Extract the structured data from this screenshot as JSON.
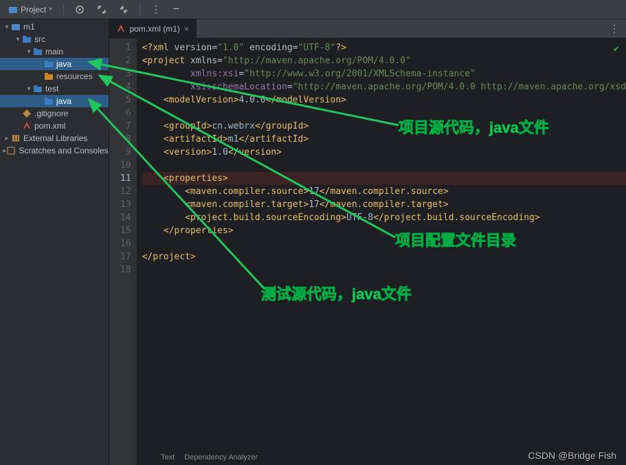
{
  "toolbar": {
    "project_label": "Project",
    "target_icon": "target",
    "expand_icon": "expand",
    "collapse_icon": "collapse",
    "more_icon": "more",
    "hide_icon": "hide"
  },
  "tree": {
    "items": [
      {
        "label": "m1",
        "depth": 0,
        "icon": "module",
        "chev": "down",
        "sel": false
      },
      {
        "label": "src",
        "depth": 1,
        "icon": "folder-blue",
        "chev": "down",
        "sel": false
      },
      {
        "label": "main",
        "depth": 2,
        "icon": "folder-blue",
        "chev": "down",
        "sel": false
      },
      {
        "label": "java",
        "depth": 3,
        "icon": "folder-blue",
        "chev": "",
        "sel": true
      },
      {
        "label": "resources",
        "depth": 3,
        "icon": "folder-orange",
        "chev": "",
        "sel": false
      },
      {
        "label": "test",
        "depth": 2,
        "icon": "folder-blue",
        "chev": "down",
        "sel": false
      },
      {
        "label": "java",
        "depth": 3,
        "icon": "folder-blue",
        "chev": "",
        "sel": true
      },
      {
        "label": ".gitignore",
        "depth": 1,
        "icon": "git",
        "chev": "",
        "sel": false
      },
      {
        "label": "pom.xml",
        "depth": 1,
        "icon": "maven",
        "chev": "",
        "sel": false
      },
      {
        "label": "External Libraries",
        "depth": 0,
        "icon": "lib",
        "chev": "right",
        "sel": false
      },
      {
        "label": "Scratches and Consoles",
        "depth": 0,
        "icon": "scratch",
        "chev": "right",
        "sel": false
      }
    ]
  },
  "tab": {
    "title": "pom.xml (m1)",
    "icon": "maven"
  },
  "annotations": {
    "a1": "项目源代码，java文件",
    "a2": "项目配置文件目录",
    "a3": "测试源代码，java文件"
  },
  "code": {
    "lines": [
      {
        "n": 1,
        "html": "<span class='c-proc'>&lt;?xml</span> <span class='c-attr'>version</span>=<span class='c-str'>\"1.0\"</span> <span class='c-attr'>encoding</span>=<span class='c-str'>\"UTF-8\"</span><span class='c-proc'>?&gt;</span>"
      },
      {
        "n": 2,
        "html": "<span class='c-tag'>&lt;project</span> <span class='c-attr'>xmlns</span>=<span class='c-str'>\"http://maven.apache.org/POM/4.0.0\"</span>"
      },
      {
        "n": 3,
        "html": "         <span class='c-attrk'>xmlns:xsi</span>=<span class='c-str'>\"http://www.w3.org/2001/XMLSchema-instance\"</span>"
      },
      {
        "n": 4,
        "html": "         <span class='c-attrk'>xsi:schemaLocation</span>=<span class='c-str'>\"http://maven.apache.org/POM/4.0.0 http://maven.apache.org/xsd</span>"
      },
      {
        "n": 5,
        "html": "    <span class='c-tag'>&lt;modelVersion&gt;</span><span class='c-text'>4.0.0</span><span class='c-tag'>&lt;/modelVersion&gt;</span>"
      },
      {
        "n": 6,
        "html": ""
      },
      {
        "n": 7,
        "html": "    <span class='c-tag'>&lt;groupId&gt;</span><span class='c-text'>cn.webrx</span><span class='c-tag'>&lt;/groupId&gt;</span>"
      },
      {
        "n": 8,
        "html": "    <span class='c-tag'>&lt;artifactId&gt;</span><span class='c-text'>m1</span><span class='c-tag'>&lt;/artifactId&gt;</span>"
      },
      {
        "n": 9,
        "html": "    <span class='c-tag'>&lt;version&gt;</span><span class='c-text'>1.0</span><span class='c-tag'>&lt;/version&gt;</span>"
      },
      {
        "n": 10,
        "html": ""
      },
      {
        "n": 11,
        "html": "    <span class='c-tag'>&lt;properties&gt;</span>",
        "hl": true
      },
      {
        "n": 12,
        "html": "        <span class='c-tag'>&lt;maven.compiler.source&gt;</span><span class='c-text'>17</span><span class='c-tag'>&lt;/maven.compiler.source&gt;</span>"
      },
      {
        "n": 13,
        "html": "        <span class='c-tag'>&lt;maven.compiler.target&gt;</span><span class='c-text'>17</span><span class='c-tag'>&lt;/maven.compiler.target&gt;</span>"
      },
      {
        "n": 14,
        "html": "        <span class='c-tag'>&lt;project.build.sourceEncoding&gt;</span><span class='c-text'>UTF-8</span><span class='c-tag'>&lt;/project.build.sourceEncoding&gt;</span>"
      },
      {
        "n": 15,
        "html": "    <span class='c-tag'>&lt;/properties&gt;</span>"
      },
      {
        "n": 16,
        "html": ""
      },
      {
        "n": 17,
        "html": "<span class='c-tag'>&lt;/project&gt;</span>"
      },
      {
        "n": 18,
        "html": ""
      }
    ]
  },
  "footer": {
    "tab1": "Text",
    "tab2": "Dependency Analyzer"
  },
  "watermark": "CSDN @Bridge Fish",
  "arrows": {
    "stroke": "#22c55e",
    "stroke_width": 3
  }
}
